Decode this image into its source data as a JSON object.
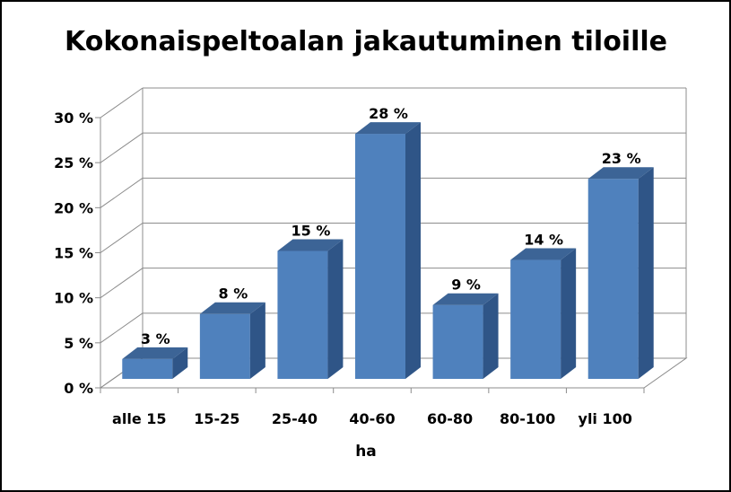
{
  "chart_data": {
    "type": "bar",
    "title": "Kokonaispeltoalan jakautuminen tiloille",
    "xlabel": "ha",
    "ylabel": "",
    "categories": [
      "alle 15",
      "15-25",
      "25-40",
      "40-60",
      "60-80",
      "80-100",
      "yli 100"
    ],
    "values": [
      3,
      8,
      15,
      28,
      9,
      14,
      23
    ],
    "data_labels": [
      "3 %",
      "8 %",
      "15 %",
      "28 %",
      "9 %",
      "14 %",
      "23 %"
    ],
    "ylim": [
      0,
      30
    ],
    "yticks": [
      0,
      5,
      10,
      15,
      20,
      25,
      30
    ],
    "ytick_labels": [
      "0 %",
      "5 %",
      "10 %",
      "15 %",
      "20 %",
      "25 %",
      "30 %"
    ],
    "grid": true,
    "legend": "none",
    "style": "3d-column",
    "colors": {
      "bar_front": "#4F81BD",
      "bar_side": "#2F5587",
      "bar_top": "#3C6496"
    }
  }
}
